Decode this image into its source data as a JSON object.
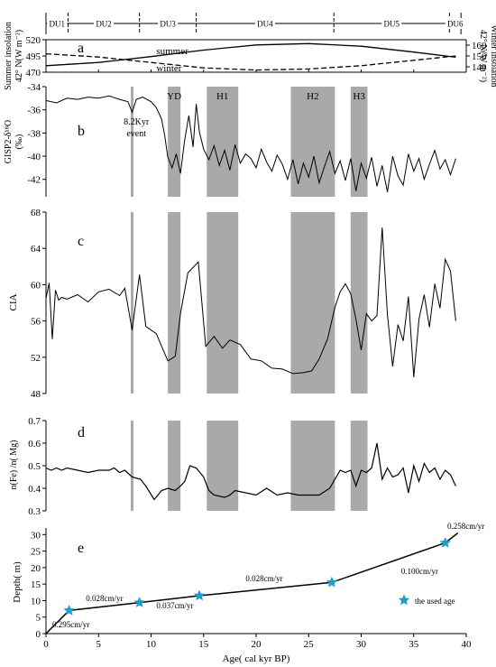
{
  "chart_data": [
    {
      "panel": "units",
      "type": "other",
      "labels": [
        "DU1",
        "DU2",
        "DU3",
        "DU4",
        "DU5",
        "DU6"
      ],
      "boundaries_kyr": [
        0,
        2.1,
        8.9,
        14.3,
        27.4,
        38.4,
        39.5
      ]
    },
    {
      "panel": "a",
      "letter": "a",
      "type": "line",
      "ylabel_left_line1": "Summer insolation",
      "ylabel_left_line2": "42° N(W m⁻²)",
      "ylabel_right_line1": "Winter insolation",
      "ylabel_right_line2": "42° N(W m⁻²)",
      "left_ticks": [
        "520",
        "495",
        "470"
      ],
      "right_ticks": [
        "160",
        "150",
        "140"
      ],
      "ylim_left": [
        470,
        520
      ],
      "ylim_right": [
        135,
        165
      ],
      "series": [
        {
          "name": "summer",
          "x": [
            0,
            5,
            10,
            15,
            20,
            25,
            30,
            35,
            39
          ],
          "y": [
            480,
            485,
            494,
            504,
            512,
            514,
            510,
            501,
            493
          ]
        },
        {
          "name": "winter",
          "x": [
            0,
            5,
            10,
            15,
            20,
            25,
            30,
            35,
            39
          ],
          "y": [
            152,
            149,
            144,
            139,
            137,
            138,
            141,
            146,
            150
          ]
        }
      ]
    },
    {
      "panel": "b",
      "letter": "b",
      "type": "line",
      "ylabel_line1": "GISP2-δ¹⁸O",
      "ylabel_line2": "(‰)",
      "yticks": [
        "-34",
        "-36",
        "-38",
        "-40",
        "-42"
      ],
      "ylim": [
        -43.5,
        -34
      ],
      "annotation_line1": "8.2Kyr",
      "annotation_line2": "event",
      "events": [
        {
          "label": "YD",
          "start": 11.6,
          "end": 12.8
        },
        {
          "label": "H1",
          "start": 15.3,
          "end": 18.3
        },
        {
          "label": "H2",
          "start": 23.3,
          "end": 27.5
        },
        {
          "label": "H3",
          "start": 29.0,
          "end": 30.6
        }
      ],
      "event_8_2_kyr": 8.2,
      "series": [
        {
          "x": [
            0,
            1,
            2,
            3,
            4,
            5,
            6,
            7,
            7.8,
            8.2,
            8.6,
            9.2,
            10,
            10.5,
            11,
            11.3,
            11.6,
            12,
            12.4,
            12.8,
            13.2,
            13.6,
            14,
            14.3,
            14.6,
            15,
            15.5,
            16,
            16.5,
            17,
            17.5,
            18,
            18.5,
            19,
            19.5,
            20,
            20.5,
            21,
            21.5,
            22,
            22.5,
            23,
            23.5,
            24,
            24.5,
            25,
            25.5,
            26,
            26.5,
            27,
            27.5,
            28,
            28.5,
            29,
            29.5,
            30,
            30.5,
            31,
            31.5,
            32,
            32.5,
            33,
            33.5,
            34,
            34.5,
            35,
            35.5,
            36,
            36.5,
            37,
            37.5,
            38,
            38.5,
            39
          ],
          "y": [
            -35.2,
            -35.4,
            -35.0,
            -35.1,
            -34.9,
            -35.0,
            -34.8,
            -35.1,
            -35.3,
            -36.2,
            -35.1,
            -34.9,
            -35.3,
            -35.8,
            -36.8,
            -38.2,
            -40.1,
            -41.0,
            -39.8,
            -41.5,
            -38.6,
            -36.5,
            -39.2,
            -35.5,
            -37.9,
            -39.4,
            -40.3,
            -39.1,
            -40.8,
            -39.5,
            -41.2,
            -39.0,
            -40.6,
            -39.8,
            -40.2,
            -41.0,
            -39.4,
            -40.5,
            -41.3,
            -39.9,
            -40.7,
            -42.0,
            -40.3,
            -42.4,
            -40.6,
            -41.8,
            -40.0,
            -42.3,
            -40.9,
            -39.6,
            -41.5,
            -40.4,
            -42.1,
            -40.2,
            -43.0,
            -40.6,
            -41.9,
            -40.1,
            -42.6,
            -40.8,
            -43.1,
            -40.0,
            -41.7,
            -42.5,
            -39.8,
            -41.3,
            -40.2,
            -42.0,
            -40.7,
            -39.5,
            -41.1,
            -40.3,
            -41.6,
            -40.2
          ]
        }
      ]
    },
    {
      "panel": "c",
      "letter": "c",
      "type": "line",
      "ylabel": "CIA",
      "yticks": [
        "68",
        "64",
        "60",
        "56",
        "52",
        "48"
      ],
      "ylim": [
        48,
        68
      ],
      "series": [
        {
          "x": [
            0,
            0.3,
            0.6,
            0.9,
            1.2,
            1.5,
            2,
            3,
            4,
            5,
            6,
            7,
            7.5,
            8.2,
            8.9,
            9.5,
            10.5,
            11.6,
            12.3,
            12.8,
            13.5,
            14.5,
            15.2,
            16,
            16.8,
            17.5,
            18.5,
            19.5,
            20.5,
            21.5,
            22.5,
            23.5,
            24.5,
            25.3,
            26,
            26.8,
            27.5,
            28,
            28.5,
            29,
            29.5,
            30,
            30.5,
            31,
            31.5,
            32,
            32.5,
            33,
            33.5,
            34,
            34.5,
            35,
            35.5,
            36,
            36.5,
            37,
            37.5,
            38,
            38.5,
            39
          ],
          "y": [
            58.5,
            60.2,
            54.0,
            59.4,
            58.3,
            58.6,
            58.4,
            58.9,
            58.1,
            59.2,
            59.5,
            58.8,
            59.6,
            55.0,
            61.1,
            55.4,
            54.6,
            51.6,
            52.1,
            56.8,
            61.3,
            62.5,
            53.2,
            54.3,
            53.0,
            53.9,
            53.4,
            51.8,
            51.6,
            50.8,
            50.7,
            50.2,
            50.3,
            50.5,
            51.8,
            54.0,
            57.5,
            59.2,
            60.1,
            59.0,
            56.2,
            52.8,
            56.8,
            56.0,
            56.6,
            66.3,
            56.7,
            51.0,
            55.6,
            53.8,
            58.7,
            49.8,
            56.2,
            58.9,
            55.3,
            60.1,
            57.4,
            62.8,
            61.5,
            56.0
          ]
        }
      ]
    },
    {
      "panel": "d",
      "letter": "d",
      "type": "line",
      "ylabel": "n(Fe) /n( Mg)",
      "yticks": [
        "0.7",
        "0.6",
        "0.5",
        "0.4",
        "0.3"
      ],
      "ylim": [
        0.3,
        0.7
      ],
      "series": [
        {
          "x": [
            0,
            0.5,
            1,
            1.5,
            2,
            3,
            4,
            5,
            6,
            6.5,
            7,
            7.5,
            8.2,
            9,
            9.5,
            10.3,
            11,
            11.6,
            12.3,
            12.8,
            13.2,
            13.7,
            14.3,
            15,
            15.5,
            16,
            17,
            17.5,
            18,
            19,
            20,
            21,
            22,
            23,
            24,
            25,
            26,
            27,
            28,
            28.5,
            29,
            29.5,
            30,
            30.5,
            31,
            31.5,
            32,
            32.5,
            33,
            33.5,
            34,
            34.5,
            35,
            35.5,
            36,
            36.5,
            37,
            37.5,
            38,
            38.5,
            39
          ],
          "y": [
            0.49,
            0.48,
            0.49,
            0.48,
            0.49,
            0.48,
            0.47,
            0.48,
            0.48,
            0.49,
            0.47,
            0.48,
            0.45,
            0.44,
            0.41,
            0.35,
            0.39,
            0.4,
            0.39,
            0.41,
            0.43,
            0.5,
            0.49,
            0.45,
            0.39,
            0.37,
            0.36,
            0.37,
            0.39,
            0.38,
            0.37,
            0.4,
            0.37,
            0.38,
            0.37,
            0.37,
            0.37,
            0.4,
            0.48,
            0.47,
            0.48,
            0.41,
            0.48,
            0.47,
            0.49,
            0.6,
            0.44,
            0.49,
            0.45,
            0.46,
            0.49,
            0.38,
            0.5,
            0.43,
            0.51,
            0.47,
            0.49,
            0.44,
            0.48,
            0.46,
            0.41
          ]
        }
      ]
    },
    {
      "panel": "e",
      "letter": "e",
      "type": "line",
      "ylabel": "Depth( m)",
      "xlabel": "Age( cal  kyr  BP)",
      "xticks": [
        "0",
        "5",
        "10",
        "15",
        "20",
        "25",
        "30",
        "35",
        "40"
      ],
      "yticks": [
        "30",
        "25",
        "20",
        "15",
        "10",
        "5",
        "0"
      ],
      "xlim": [
        0,
        40
      ],
      "ylim": [
        0,
        32
      ],
      "legend_label": "the used age",
      "legend_position": "right",
      "line": {
        "x": [
          0,
          2.2,
          8.9,
          14.6,
          27.2,
          38.0,
          39.2
        ],
        "y": [
          0,
          7.0,
          9.4,
          11.5,
          15.5,
          27.5,
          30.5
        ]
      },
      "used_ages": {
        "x": [
          2.2,
          8.9,
          14.6,
          27.2,
          38.0
        ],
        "y": [
          7.0,
          9.4,
          11.5,
          15.5,
          27.5
        ]
      },
      "rates": [
        "0.295cm/yr",
        "0.028cm/yr",
        "0.037cm/yr",
        "0.028cm/yr",
        "0.100cm/yr",
        "0.258cm/yr"
      ]
    }
  ]
}
